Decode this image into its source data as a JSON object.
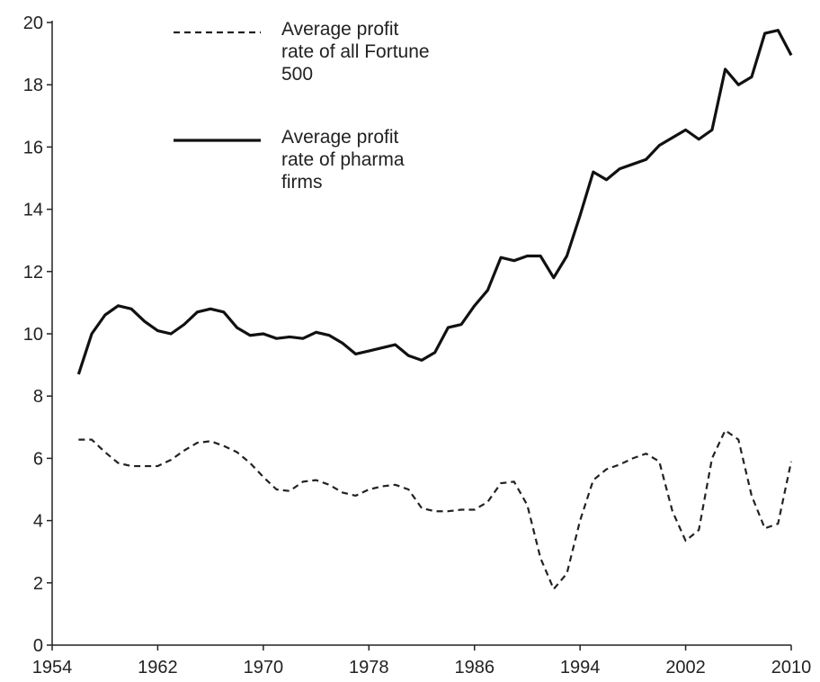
{
  "chart_data": {
    "type": "line",
    "x": [
      1956,
      1957,
      1958,
      1959,
      1960,
      1961,
      1962,
      1963,
      1964,
      1965,
      1966,
      1967,
      1968,
      1969,
      1970,
      1971,
      1972,
      1973,
      1974,
      1975,
      1976,
      1977,
      1978,
      1979,
      1980,
      1981,
      1982,
      1983,
      1984,
      1985,
      1986,
      1987,
      1988,
      1989,
      1990,
      1991,
      1992,
      1993,
      1994,
      1995,
      1996,
      1997,
      1998,
      1999,
      2000,
      2001,
      2002,
      2003,
      2004,
      2005,
      2006,
      2007,
      2008,
      2009,
      2010
    ],
    "series": [
      {
        "name": "Average profit rate of all Fortune 500",
        "color": "#222222",
        "linestyle": "dashed",
        "values": [
          6.6,
          6.6,
          6.2,
          5.85,
          5.75,
          5.75,
          5.75,
          5.95,
          6.25,
          6.5,
          6.55,
          6.4,
          6.2,
          5.85,
          5.4,
          5.0,
          4.95,
          5.25,
          5.3,
          5.15,
          4.9,
          4.8,
          5.0,
          5.1,
          5.15,
          5.0,
          4.4,
          4.3,
          4.3,
          4.35,
          4.35,
          4.6,
          5.2,
          5.25,
          4.5,
          2.8,
          1.8,
          2.3,
          4.0,
          5.3,
          5.65,
          5.8,
          6.0,
          6.15,
          5.9,
          4.3,
          3.35,
          3.7,
          6.0,
          6.9,
          6.6,
          4.8,
          3.75,
          3.9,
          5.9
        ]
      },
      {
        "name": "Average profit rate of pharma firms",
        "color": "#111111",
        "linestyle": "solid",
        "values": [
          8.7,
          10.0,
          10.6,
          10.9,
          10.8,
          10.4,
          10.1,
          10.0,
          10.3,
          10.7,
          10.8,
          10.7,
          10.2,
          9.95,
          10.0,
          9.85,
          9.9,
          9.85,
          10.05,
          9.95,
          9.7,
          9.35,
          9.45,
          9.55,
          9.65,
          9.3,
          9.15,
          9.4,
          10.2,
          10.3,
          10.9,
          11.4,
          12.45,
          12.35,
          12.5,
          12.5,
          11.8,
          12.5,
          13.8,
          15.2,
          14.95,
          15.3,
          15.45,
          15.6,
          16.05,
          16.3,
          16.55,
          16.25,
          16.55,
          18.5,
          18.0,
          18.25,
          19.65,
          19.75,
          18.95
        ]
      }
    ],
    "xlim": [
      1954,
      2010
    ],
    "xticks": [
      1954,
      1962,
      1970,
      1978,
      1986,
      1994,
      2002,
      2010
    ],
    "ylim": [
      0,
      20
    ],
    "yticks": [
      0,
      2,
      4,
      6,
      8,
      10,
      12,
      14,
      16,
      18,
      20
    ],
    "grid": false,
    "legend": "top-left"
  }
}
